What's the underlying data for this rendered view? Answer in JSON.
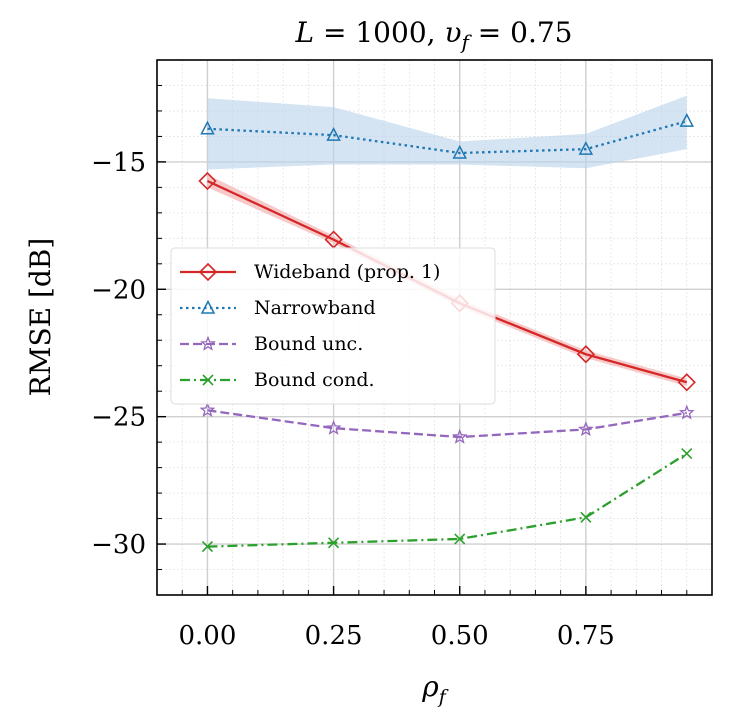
{
  "chart_data": {
    "type": "line",
    "title": "L = 1000, υ_f = 0.75",
    "title_parts": {
      "l1": "L",
      "eq1": " = 1000, ",
      "l2": "υ",
      "sub": "f",
      "eq2": " = 0.75"
    },
    "xlabel": {
      "main": "ρ",
      "sub": "f"
    },
    "ylabel": "RMSE [dB]",
    "xlim": [
      -0.1,
      1.0
    ],
    "ylim": [
      -32,
      -11
    ],
    "xticks": [
      0,
      0.25,
      0.5,
      0.75
    ],
    "xtick_labels": [
      "0.00",
      "0.25",
      "0.50",
      "0.75"
    ],
    "yticks": [
      -30,
      -25,
      -20,
      -15
    ],
    "ytick_labels": [
      "−30",
      "−25",
      "−20",
      "−15"
    ],
    "grid": true,
    "legend_position": "center-left",
    "x": [
      0,
      0.25,
      0.5,
      0.75,
      0.95
    ],
    "series": [
      {
        "name": "Wideband (prop. 1)",
        "values": [
          -15.75,
          -18.05,
          -20.55,
          -22.55,
          -23.65
        ],
        "band_lower": [
          -16.0,
          -18.2,
          -20.7,
          -22.7,
          -23.8
        ],
        "band_upper": [
          -15.5,
          -17.9,
          -20.4,
          -22.4,
          -23.5
        ],
        "color": "#d62728",
        "marker": "diamond",
        "dash": "solid"
      },
      {
        "name": "Narrowband",
        "values": [
          -13.7,
          -13.95,
          -14.65,
          -14.5,
          -13.4
        ],
        "band_lower": [
          -15.3,
          -15.1,
          -15.1,
          -15.25,
          -14.5
        ],
        "band_upper": [
          -12.5,
          -12.85,
          -14.2,
          -13.9,
          -12.4
        ],
        "color": "#1f77b4",
        "marker": "triangle",
        "dash": "dotted"
      },
      {
        "name": "Bound unc.",
        "values": [
          -24.75,
          -25.45,
          -25.8,
          -25.5,
          -24.85
        ],
        "color": "#9467bd",
        "marker": "star",
        "dash": "dashed"
      },
      {
        "name": "Bound cond.",
        "values": [
          -30.1,
          -29.95,
          -29.8,
          -28.95,
          -26.45
        ],
        "color": "#2ca02c",
        "marker": "x",
        "dash": "dashdot"
      }
    ]
  }
}
